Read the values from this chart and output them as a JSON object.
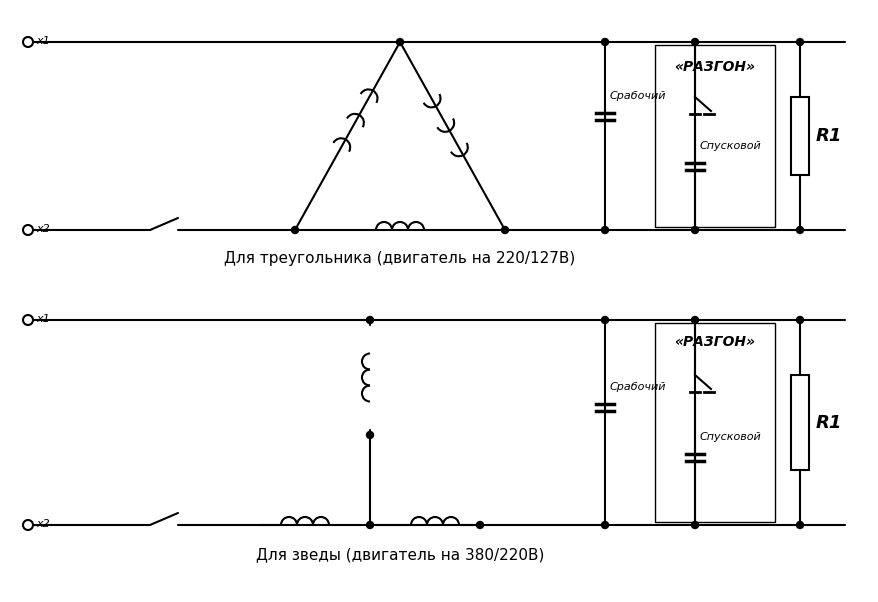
{
  "title1": "Для треугольника (двигатель на 220/127В)",
  "title2": "Для зведы (двигатель на 380/220В)",
  "razgon_label": "«РАЗГОН»",
  "rabochiy_label": "Срабочий",
  "puskovoy_label": "Спусковой",
  "r1_label": "R1",
  "x1_label": "x1",
  "x2_label": "x2",
  "bg_color": "#ffffff",
  "line_color": "#000000"
}
